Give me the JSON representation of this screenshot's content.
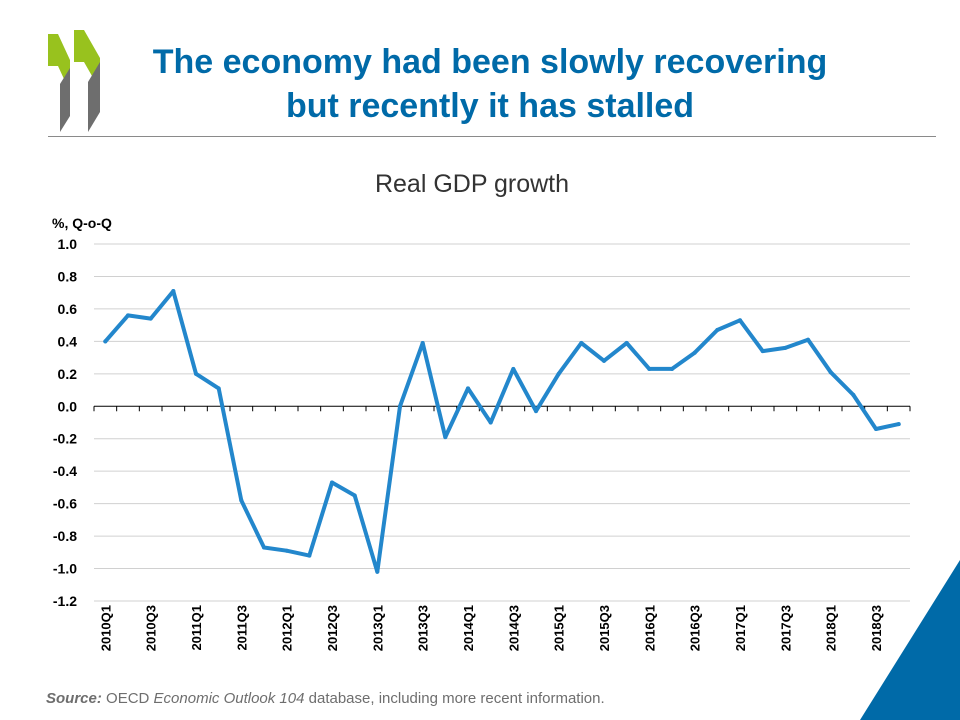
{
  "header": {
    "title_line1": "The economy had been slowly recovering",
    "title_line2": "but recently it has stalled"
  },
  "colors": {
    "title": "#006aa8",
    "series": "#2387cc",
    "logo_green": "#98c21e",
    "logo_grey": "#6e6e6e",
    "corner": "#006aa8"
  },
  "chart_data": {
    "type": "line",
    "title": "Real GDP growth",
    "ylabel": "%, Q-o-Q",
    "xlabel": "",
    "ylim": [
      -1.2,
      1.0
    ],
    "yticks": [
      "1.0",
      "0.8",
      "0.6",
      "0.4",
      "0.2",
      "0.0",
      "-0.2",
      "-0.4",
      "-0.6",
      "-0.8",
      "-1.0",
      "-1.2"
    ],
    "grid": true,
    "x": [
      "2010Q1",
      "2010Q2",
      "2010Q3",
      "2010Q4",
      "2011Q1",
      "2011Q2",
      "2011Q3",
      "2011Q4",
      "2012Q1",
      "2012Q2",
      "2012Q3",
      "2012Q4",
      "2013Q1",
      "2013Q2",
      "2013Q3",
      "2013Q4",
      "2014Q1",
      "2014Q2",
      "2014Q3",
      "2014Q4",
      "2015Q1",
      "2015Q2",
      "2015Q3",
      "2015Q4",
      "2016Q1",
      "2016Q2",
      "2016Q3",
      "2016Q4",
      "2017Q1",
      "2017Q2",
      "2017Q3",
      "2017Q4",
      "2018Q1",
      "2018Q2",
      "2018Q3",
      "2018Q4"
    ],
    "xtick_labels": [
      "2010Q1",
      "2010Q3",
      "2011Q1",
      "2011Q3",
      "2012Q1",
      "2012Q3",
      "2013Q1",
      "2013Q3",
      "2014Q1",
      "2014Q3",
      "2015Q1",
      "2015Q3",
      "2016Q1",
      "2016Q3",
      "2017Q1",
      "2017Q3",
      "2018Q1",
      "2018Q3"
    ],
    "series": [
      {
        "values": [
          0.4,
          0.56,
          0.54,
          0.71,
          0.2,
          0.11,
          -0.58,
          -0.87,
          -0.89,
          -0.92,
          -0.47,
          -0.55,
          -1.02,
          0.0,
          0.39,
          -0.19,
          0.11,
          -0.1,
          0.23,
          -0.03,
          0.2,
          0.39,
          0.28,
          0.39,
          0.23,
          0.23,
          0.33,
          0.47,
          0.53,
          0.34,
          0.36,
          0.41,
          0.21,
          0.07,
          -0.14,
          -0.11
        ]
      }
    ]
  },
  "source": {
    "label": "Source:",
    "text_before": "OECD",
    "italic_text": "Economic Outlook 104",
    "text_after": "database, including more recent information."
  }
}
